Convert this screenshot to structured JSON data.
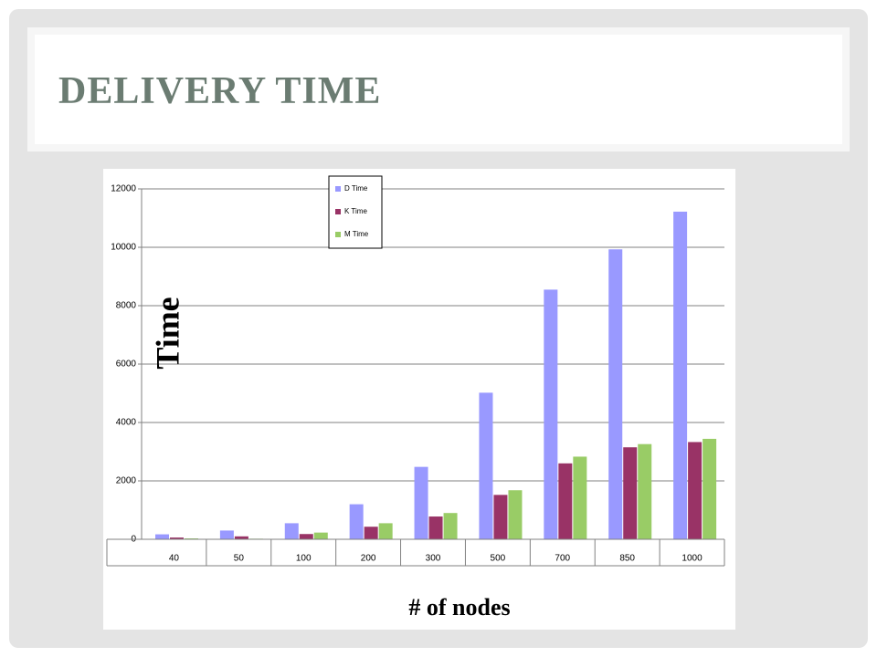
{
  "slide": {
    "title": "DELIVERY TIME"
  },
  "chart_data": {
    "type": "bar",
    "x_label": "# of nodes",
    "y_label": "Time",
    "categories": [
      "40",
      "50",
      "100",
      "200",
      "300",
      "500",
      "700",
      "850",
      "1000"
    ],
    "series": [
      {
        "name": "D Time",
        "color": "#9999ff",
        "values": [
          170,
          300,
          550,
          1200,
          2480,
          5020,
          8550,
          9930,
          11220
        ]
      },
      {
        "name": "K Time",
        "color": "#993366",
        "values": [
          60,
          100,
          180,
          430,
          780,
          1520,
          2600,
          3150,
          3330
        ]
      },
      {
        "name": "M Time",
        "color": "#99cc66",
        "values": [
          30,
          20,
          230,
          550,
          900,
          1680,
          2830,
          3260,
          3440
        ]
      }
    ],
    "ylim": [
      0,
      12000
    ],
    "yticks": [
      0,
      2000,
      4000,
      6000,
      8000,
      10000,
      12000
    ],
    "grid": true,
    "legend": "top"
  }
}
